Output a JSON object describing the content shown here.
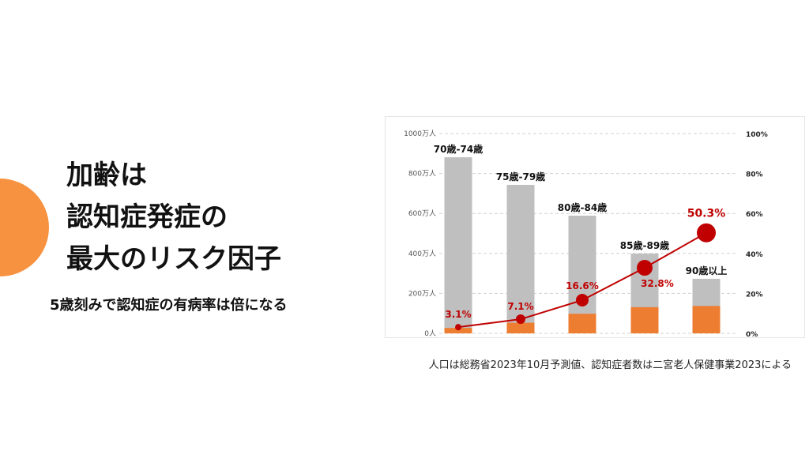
{
  "slide": {
    "title_lines": [
      "加齢は",
      "認知症発症の",
      "最大のリスク因子"
    ],
    "subtitle": "5歳刻みで認知症の有病率は倍になる",
    "note": "人口は総務省2023年10月予測値、認知症者数は二宮老人保健事業2023による"
  },
  "colors": {
    "accent": "#f79240",
    "population": "#bfbfbf",
    "dementia": "#ed7d31",
    "rate": "#c00000"
  },
  "chart_data": {
    "type": "bar+line",
    "categories": [
      "70歳-74歳",
      "75歳-79歳",
      "80歳-84歳",
      "85歳-89歳",
      "90歳以上"
    ],
    "series": [
      {
        "name": "人口",
        "unit": "万人",
        "values": [
          881,
          743,
          589,
          399,
          273
        ]
      },
      {
        "name": "認知症者数",
        "unit": "万人",
        "values": [
          27,
          53,
          98,
          131,
          137
        ]
      },
      {
        "name": "有病率",
        "unit": "%",
        "axis": "right",
        "values": [
          3.1,
          7.1,
          16.6,
          32.8,
          50.3
        ],
        "labels": [
          "3.1%",
          "7.1%",
          "16.6%",
          "32.8%",
          "50.3%"
        ]
      }
    ],
    "y_left": {
      "range": [
        0,
        1000
      ],
      "ticks": [
        "0人",
        "200万人",
        "400万人",
        "600万人",
        "800万人",
        "1000万人"
      ]
    },
    "y_right": {
      "range": [
        0,
        100
      ],
      "ticks": [
        "0%",
        "20%",
        "40%",
        "60%",
        "80%",
        "100%"
      ]
    },
    "grid": true
  }
}
